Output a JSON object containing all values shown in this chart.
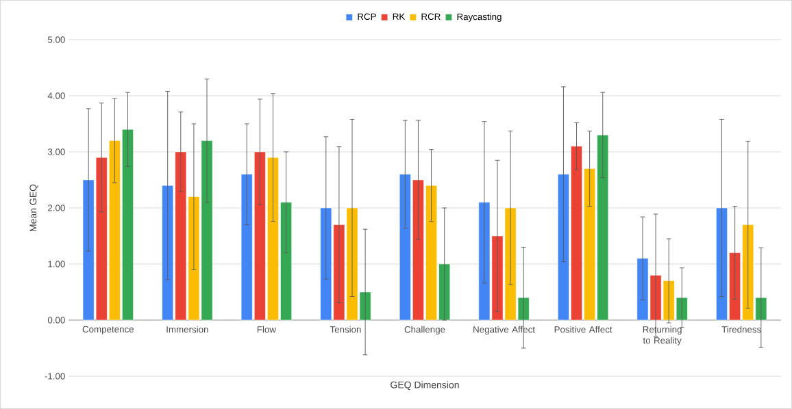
{
  "chart_data": {
    "type": "bar",
    "xlabel": "GEQ Dimension",
    "ylabel": "Mean GEQ",
    "categories": [
      "Competence",
      "Immersion",
      "Flow",
      "Tension",
      "Challenge",
      "Negative Affect",
      "Positive Affect",
      "Returning to Reality",
      "Tiredness"
    ],
    "series": [
      {
        "name": "RCP",
        "color": "#4285f4",
        "values": [
          2.5,
          2.4,
          2.6,
          2.0,
          2.6,
          2.1,
          2.6,
          1.1,
          2.0
        ],
        "errors": [
          1.27,
          1.68,
          0.9,
          1.27,
          0.96,
          1.44,
          1.56,
          0.74,
          1.58
        ]
      },
      {
        "name": "RK",
        "color": "#ea4335",
        "values": [
          2.9,
          3.0,
          3.0,
          1.7,
          2.5,
          1.5,
          3.1,
          0.8,
          1.2
        ],
        "errors": [
          0.97,
          0.71,
          0.94,
          1.39,
          1.06,
          1.35,
          0.42,
          1.09,
          0.83
        ]
      },
      {
        "name": "RCR",
        "color": "#fbbc04",
        "values": [
          3.2,
          2.2,
          2.9,
          2.0,
          2.4,
          2.0,
          2.7,
          0.7,
          1.7
        ],
        "errors": [
          0.75,
          1.3,
          1.14,
          1.58,
          0.64,
          1.37,
          0.67,
          0.75,
          1.49
        ]
      },
      {
        "name": "Raycasting",
        "color": "#34a853",
        "values": [
          3.4,
          3.2,
          2.1,
          0.5,
          1.0,
          0.4,
          3.3,
          0.4,
          0.4
        ],
        "errors": [
          0.66,
          1.1,
          0.9,
          1.12,
          1.0,
          0.9,
          0.76,
          0.53,
          0.89
        ]
      }
    ],
    "ylim": [
      -1,
      5
    ],
    "yticks": [
      {
        "value": -1,
        "label": "-1.00"
      },
      {
        "value": 0,
        "label": "0.00"
      },
      {
        "value": 1,
        "label": "1.00"
      },
      {
        "value": 2,
        "label": "2.00"
      },
      {
        "value": 3,
        "label": "3.00"
      },
      {
        "value": 4,
        "label": "4.00"
      },
      {
        "value": 5,
        "label": "5.00"
      }
    ],
    "grid": "y",
    "legend": "top"
  }
}
